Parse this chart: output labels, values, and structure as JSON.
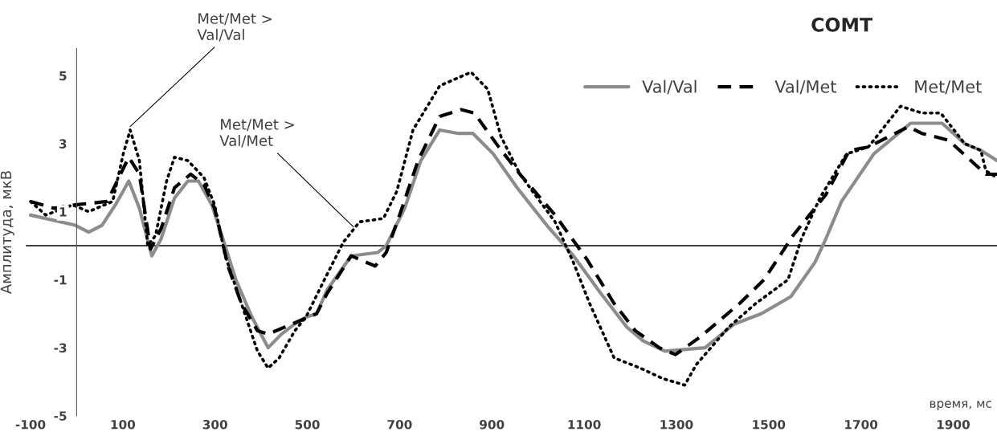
{
  "chart_data": {
    "type": "line",
    "title": "COMT",
    "xlabel": "время, мс",
    "ylabel": "Амплитуда, мкВ",
    "xlim": [
      -110,
      1995
    ],
    "ylim": [
      -5,
      5.8
    ],
    "xticks": [
      -100,
      100,
      300,
      500,
      700,
      900,
      1100,
      1300,
      1500,
      1700,
      1900
    ],
    "yticks": [
      -5,
      -3,
      -1,
      1,
      3,
      5
    ],
    "legend": "top right",
    "grid": false,
    "ref_lines": [
      {
        "axis": "y",
        "value": 0,
        "color": "#000000"
      }
    ],
    "annotations": [
      {
        "text": "Met/Met >\nVal/Val",
        "x": 116,
        "y": 3.5
      },
      {
        "text": "Met/Met >\nVal/Met",
        "x": 600,
        "y": 0.55
      }
    ],
    "series": [
      {
        "name": "Val/Val",
        "color": "#8c8c8c",
        "line_style": "solid",
        "x": [
          -100,
          -3,
          26,
          55,
          84,
          113,
          136,
          163,
          183,
          212,
          241,
          264,
          293,
          317,
          345,
          380,
          415,
          444,
          473,
          497,
          520,
          543,
          595,
          653,
          671,
          711,
          746,
          787,
          828,
          859,
          903,
          955,
          1019,
          1077,
          1136,
          1193,
          1228,
          1275,
          1362,
          1426,
          1484,
          1548,
          1600,
          1624,
          1658,
          1728,
          1808,
          1876,
          1925,
          1960,
          1995
        ],
        "values": [
          0.9,
          0.6,
          0.4,
          0.6,
          1.2,
          1.9,
          1.1,
          -0.3,
          0.2,
          1.4,
          1.9,
          1.9,
          1.2,
          0.2,
          -1.0,
          -2.1,
          -3.0,
          -2.6,
          -2.3,
          -2.1,
          -2.0,
          -1.3,
          -0.3,
          -0.2,
          0.0,
          1.1,
          2.5,
          3.4,
          3.3,
          3.3,
          2.7,
          1.7,
          0.6,
          -0.3,
          -1.4,
          -2.4,
          -2.8,
          -3.1,
          -3.0,
          -2.3,
          -2.0,
          -1.5,
          -0.5,
          0.2,
          1.3,
          2.7,
          3.6,
          3.6,
          3.0,
          2.8,
          2.5
        ]
      },
      {
        "name": "Val/Met",
        "color": "#000000",
        "line_style": "dashed",
        "x": [
          -100,
          -49,
          -3,
          66,
          113,
          136,
          160,
          183,
          212,
          247,
          276,
          299,
          328,
          357,
          392,
          415,
          450,
          520,
          543,
          595,
          647,
          671,
          700,
          740,
          787,
          833,
          862,
          915,
          961,
          1037,
          1106,
          1165,
          1211,
          1263,
          1298,
          1350,
          1437,
          1490,
          1553,
          1624,
          1675,
          1716,
          1803,
          1832,
          1890,
          1971,
          1995
        ],
        "values": [
          1.3,
          1.1,
          1.2,
          1.3,
          2.6,
          2.1,
          -0.1,
          0.5,
          1.7,
          2.1,
          1.8,
          1.1,
          -0.6,
          -1.7,
          -2.5,
          -2.6,
          -2.4,
          -2.0,
          -1.4,
          -0.3,
          -0.6,
          -0.2,
          0.9,
          2.5,
          3.8,
          4.0,
          3.9,
          2.9,
          2.1,
          0.9,
          -0.4,
          -1.7,
          -2.5,
          -3.0,
          -3.2,
          -2.7,
          -1.7,
          -1.0,
          0.3,
          1.5,
          2.8,
          2.9,
          3.5,
          3.3,
          3.1,
          2.1,
          2.1
        ]
      },
      {
        "name": "Met/Met",
        "color": "#000000",
        "line_style": "dotted",
        "x": [
          -100,
          -67,
          -9,
          26,
          78,
          101,
          116,
          136,
          154,
          171,
          195,
          212,
          241,
          276,
          299,
          322,
          357,
          392,
          415,
          439,
          473,
          497,
          537,
          578,
          613,
          665,
          694,
          729,
          787,
          855,
          891,
          920,
          961,
          1037,
          1077,
          1112,
          1165,
          1222,
          1269,
          1318,
          1343,
          1413,
          1472,
          1542,
          1571,
          1611,
          1669,
          1716,
          1786,
          1832,
          1873,
          1925,
          1960,
          1971,
          1995
        ],
        "values": [
          1.3,
          0.9,
          1.2,
          1.0,
          1.3,
          2.7,
          3.4,
          2.5,
          0.0,
          0.3,
          1.9,
          2.6,
          2.5,
          2.0,
          1.2,
          -0.3,
          -1.7,
          -3.1,
          -3.6,
          -3.3,
          -2.5,
          -2.1,
          -1.0,
          0.1,
          0.7,
          0.8,
          1.6,
          3.4,
          4.7,
          5.1,
          4.6,
          3.2,
          2.1,
          0.7,
          -0.5,
          -1.7,
          -3.3,
          -3.6,
          -3.9,
          -4.1,
          -3.5,
          -2.4,
          -1.7,
          -1.0,
          0.2,
          1.4,
          2.7,
          2.9,
          4.1,
          3.9,
          3.9,
          3.0,
          2.8,
          2.2,
          2.0
        ]
      }
    ]
  }
}
